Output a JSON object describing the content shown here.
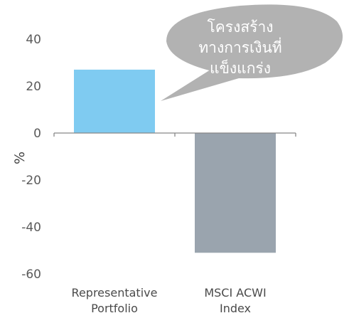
{
  "chart_data": {
    "type": "bar",
    "categories": [
      "Representative Portfolio",
      "MSCI ACWI Index"
    ],
    "category_lines": [
      [
        "Representative",
        "Portfolio"
      ],
      [
        "MSCI ACWI",
        "Index"
      ]
    ],
    "values": [
      27,
      -51
    ],
    "bar_colors": [
      "#7fcbf1",
      "#9aa4ae"
    ],
    "ylabel": "%",
    "ylim": [
      -60,
      40
    ],
    "yticks": [
      40,
      20,
      0,
      -20,
      -40,
      -60
    ],
    "ytick_labels": [
      "40",
      "20",
      "0",
      "-20",
      "-40",
      "-60"
    ],
    "grid": false,
    "annotation": {
      "text": "โครงสร้าง\nทางการเงินที่\nแข็งแกร่ง",
      "bubble_color": "#b2b2b2",
      "points_to": "Representative Portfolio"
    }
  }
}
